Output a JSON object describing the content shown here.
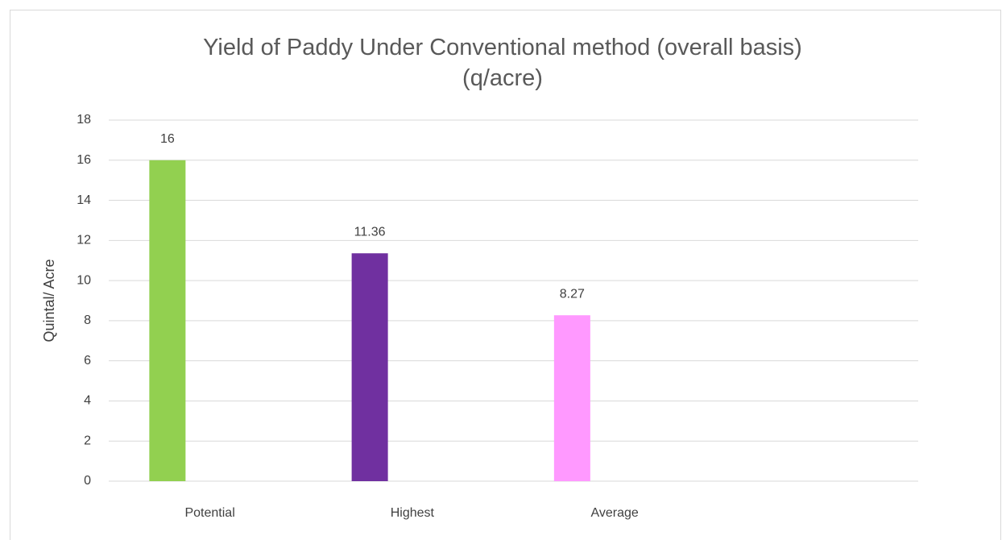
{
  "chart_data": {
    "type": "bar",
    "title": "Yield of Paddy Under Conventional method (overall basis) (q/acre)",
    "y_label": "Quintal/ Acre",
    "categories": [
      "Potential",
      "Highest",
      "Average",
      null
    ],
    "values": [
      16,
      11.36,
      8.27,
      null
    ],
    "colors": [
      "#92d050",
      "#7030a0",
      "#ff99ff",
      null
    ],
    "ylim": [
      0,
      18
    ],
    "yticks": [
      0,
      2,
      4,
      6,
      8,
      10,
      12,
      14,
      16,
      18
    ],
    "grid": true
  }
}
